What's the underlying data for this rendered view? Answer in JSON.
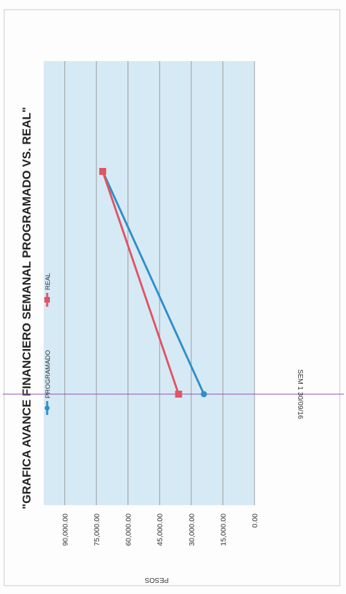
{
  "chart_data": {
    "type": "line",
    "title": "\"GRAFICA AVANCE FINANCIERO  SEMANAL PROGRAMADO VS. REAL\"",
    "ylabel": "PESOS",
    "xlabel": "",
    "ylim": [
      0,
      100000
    ],
    "y_ticks": [
      {
        "value": 0,
        "label": "0.00"
      },
      {
        "value": 15000,
        "label": "15,000.00"
      },
      {
        "value": 30000,
        "label": "30,000.00"
      },
      {
        "value": 45000,
        "label": "45,000.00"
      },
      {
        "value": 60000,
        "label": "60,000.00"
      },
      {
        "value": 75000,
        "label": "75,000.00"
      },
      {
        "value": 90000,
        "label": "90,000.00"
      }
    ],
    "categories": [
      "SEM 1   30/09/16",
      ""
    ],
    "series": [
      {
        "name": "PROGRAMADO",
        "color": "#2f8fc8",
        "marker": "diamond",
        "values": [
          24000,
          72000
        ]
      },
      {
        "name": "REAL",
        "color": "#e05563",
        "marker": "square",
        "values": [
          36000,
          72000
        ]
      }
    ],
    "grid": true,
    "legend_position": "top-left",
    "rotation": "page rotated 90 degrees counter-clockwise",
    "colors": {
      "plot_background": "#d6eaf6",
      "gridline": "#9a9a9a",
      "category_line": "#8f4fb0"
    }
  }
}
